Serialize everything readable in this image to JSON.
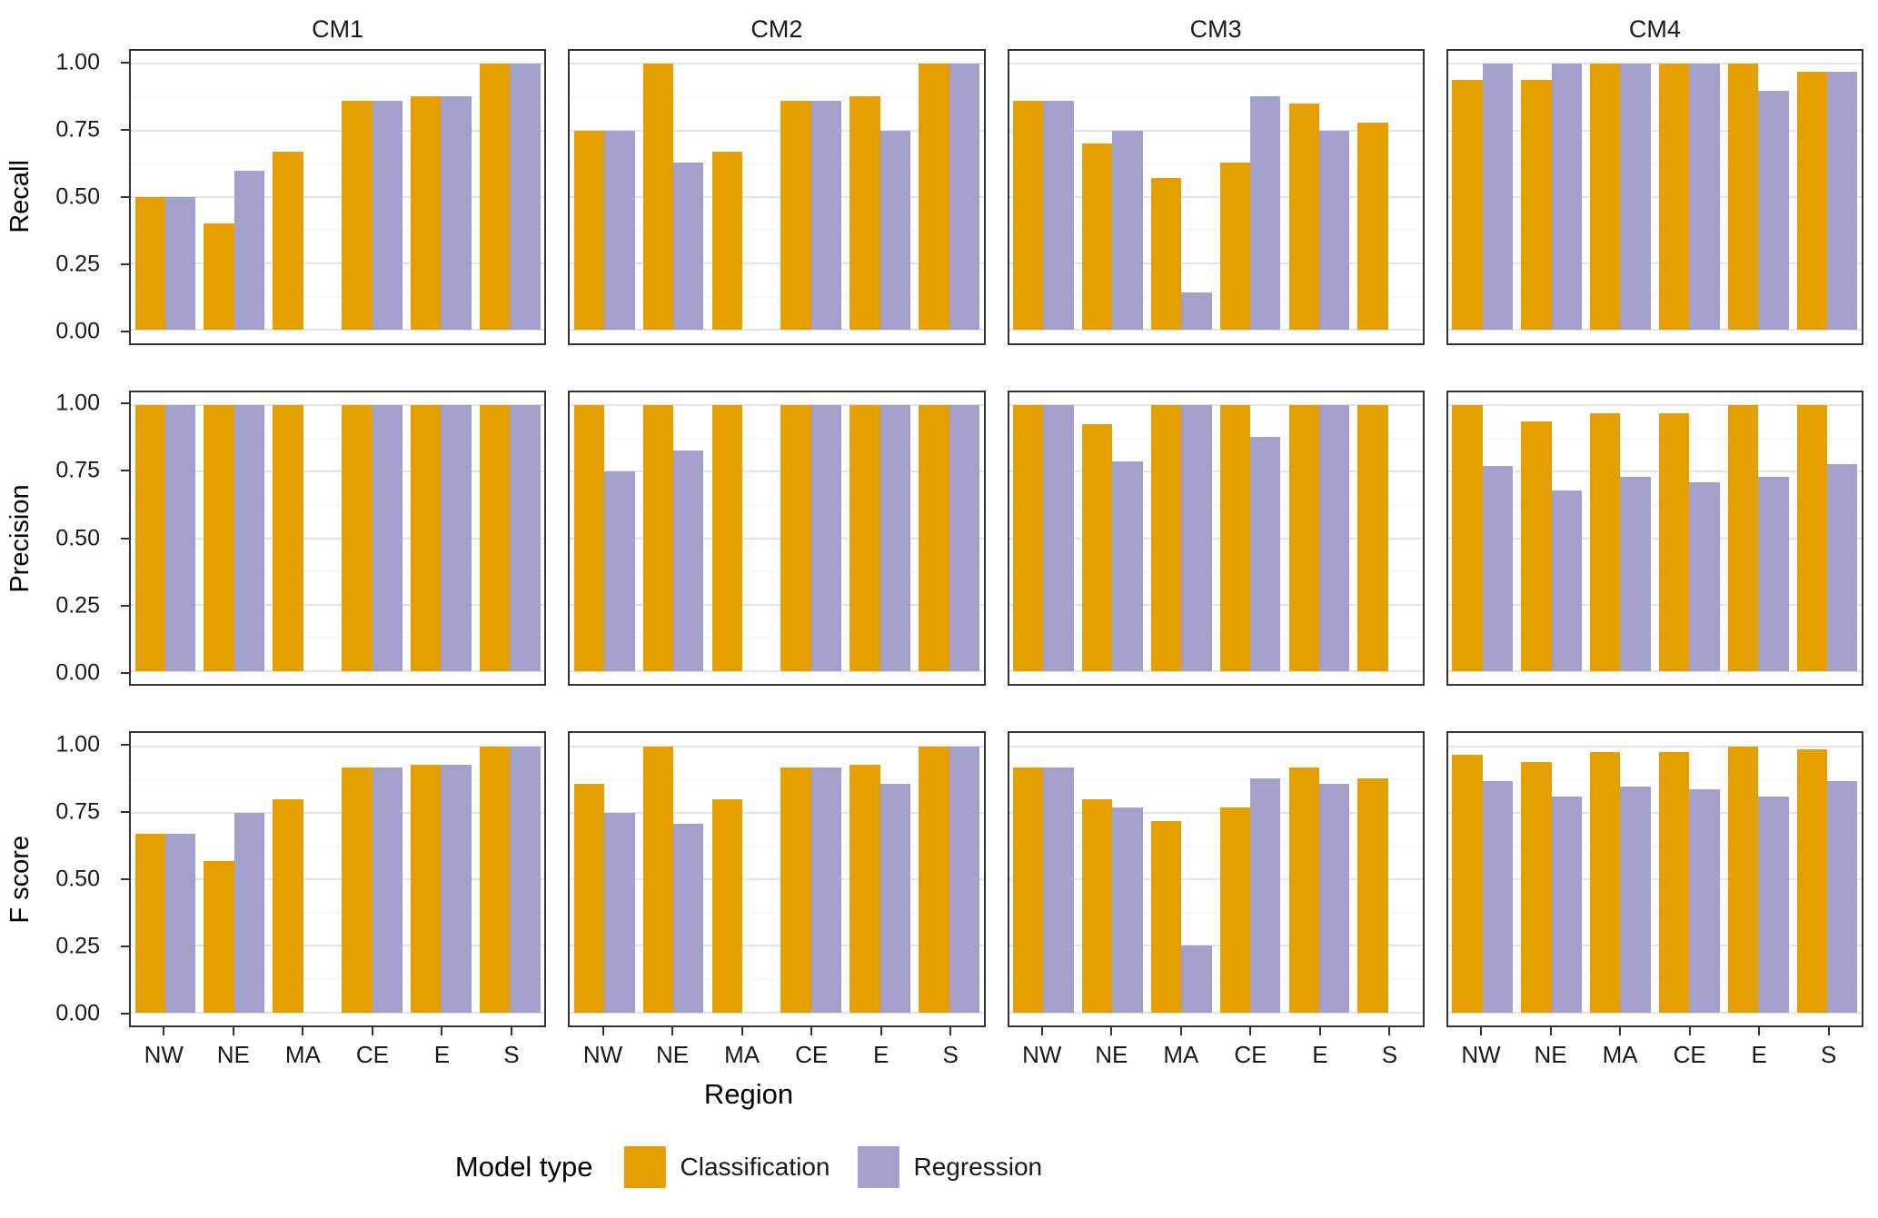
{
  "figure": {
    "xlabel": "Region"
  },
  "metrics": [
    "Recall",
    "Precision",
    "F score"
  ],
  "colors": {
    "classification": "#E69F00",
    "regression": "#A3A0CC",
    "panel_border": "#333333",
    "grid_major": "#E4E4E4",
    "grid_minor": "#F2F2F2",
    "text": "#1A1A1A"
  },
  "y_axis": {
    "ticks": [
      {
        "label": "0.00",
        "value": 0
      },
      {
        "label": "0.25",
        "value": 0.25
      },
      {
        "label": "0.50",
        "value": 0.5
      },
      {
        "label": "0.75",
        "value": 0.75
      },
      {
        "label": "1.00",
        "value": 1
      }
    ]
  },
  "legend": {
    "title": "Model type",
    "items": [
      {
        "label": "Classification"
      },
      {
        "label": "Regression"
      }
    ]
  },
  "chart_data": {
    "type": "bar",
    "facet_rows": [
      "Recall",
      "Precision",
      "F score"
    ],
    "facet_cols": [
      "CM1",
      "CM2",
      "CM3",
      "CM4"
    ],
    "categories": [
      "NW",
      "NE",
      "MA",
      "CE",
      "E",
      "S"
    ],
    "series": [
      {
        "name": "Classification",
        "color": "#E69F00"
      },
      {
        "name": "Regression",
        "color": "#A3A0CC"
      }
    ],
    "ylim": [
      0,
      1
    ],
    "grid": {
      "major": [
        0,
        0.25,
        0.5,
        0.75,
        1
      ],
      "minor": [
        0.125,
        0.375,
        0.625,
        0.875
      ]
    },
    "panels": [
      {
        "row": "Recall",
        "col": "CM1",
        "values": {
          "Classification": [
            0.5,
            0.4,
            0.67,
            0.86,
            0.88,
            1.0
          ],
          "Regression": [
            0.5,
            0.6,
            null,
            0.86,
            0.88,
            1.0
          ]
        }
      },
      {
        "row": "Recall",
        "col": "CM2",
        "values": {
          "Classification": [
            0.75,
            1.0,
            0.67,
            0.86,
            0.88,
            1.0
          ],
          "Regression": [
            0.75,
            0.63,
            null,
            0.86,
            0.75,
            1.0
          ]
        }
      },
      {
        "row": "Recall",
        "col": "CM3",
        "values": {
          "Classification": [
            0.86,
            0.7,
            0.57,
            0.63,
            0.85,
            0.78
          ],
          "Regression": [
            0.86,
            0.75,
            0.14,
            0.88,
            0.75,
            null
          ]
        }
      },
      {
        "row": "Recall",
        "col": "CM4",
        "values": {
          "Classification": [
            0.94,
            0.94,
            1.0,
            1.0,
            1.0,
            0.97
          ],
          "Regression": [
            1.0,
            1.0,
            1.0,
            1.0,
            0.9,
            0.97
          ]
        }
      },
      {
        "row": "Precision",
        "col": "CM1",
        "values": {
          "Classification": [
            1.0,
            1.0,
            1.0,
            1.0,
            1.0,
            1.0
          ],
          "Regression": [
            1.0,
            1.0,
            null,
            1.0,
            1.0,
            1.0
          ]
        }
      },
      {
        "row": "Precision",
        "col": "CM2",
        "values": {
          "Classification": [
            1.0,
            1.0,
            1.0,
            1.0,
            1.0,
            1.0
          ],
          "Regression": [
            0.75,
            0.83,
            null,
            1.0,
            1.0,
            1.0
          ]
        }
      },
      {
        "row": "Precision",
        "col": "CM3",
        "values": {
          "Classification": [
            1.0,
            0.93,
            1.0,
            1.0,
            1.0,
            1.0
          ],
          "Regression": [
            1.0,
            0.79,
            1.0,
            0.88,
            1.0,
            null
          ]
        }
      },
      {
        "row": "Precision",
        "col": "CM4",
        "values": {
          "Classification": [
            1.0,
            0.94,
            0.97,
            0.97,
            1.0,
            1.0
          ],
          "Regression": [
            0.77,
            0.68,
            0.73,
            0.71,
            0.73,
            0.78
          ]
        }
      },
      {
        "row": "F score",
        "col": "CM1",
        "values": {
          "Classification": [
            0.67,
            0.57,
            0.8,
            0.92,
            0.93,
            1.0
          ],
          "Regression": [
            0.67,
            0.75,
            null,
            0.92,
            0.93,
            1.0
          ]
        }
      },
      {
        "row": "F score",
        "col": "CM2",
        "values": {
          "Classification": [
            0.86,
            1.0,
            0.8,
            0.92,
            0.93,
            1.0
          ],
          "Regression": [
            0.75,
            0.71,
            null,
            0.92,
            0.86,
            1.0
          ]
        }
      },
      {
        "row": "F score",
        "col": "CM3",
        "values": {
          "Classification": [
            0.92,
            0.8,
            0.72,
            0.77,
            0.92,
            0.88
          ],
          "Regression": [
            0.92,
            0.77,
            0.25,
            0.88,
            0.86,
            null
          ]
        }
      },
      {
        "row": "F score",
        "col": "CM4",
        "values": {
          "Classification": [
            0.97,
            0.94,
            0.98,
            0.98,
            1.0,
            0.99
          ],
          "Regression": [
            0.87,
            0.81,
            0.85,
            0.84,
            0.81,
            0.87
          ]
        }
      }
    ]
  }
}
